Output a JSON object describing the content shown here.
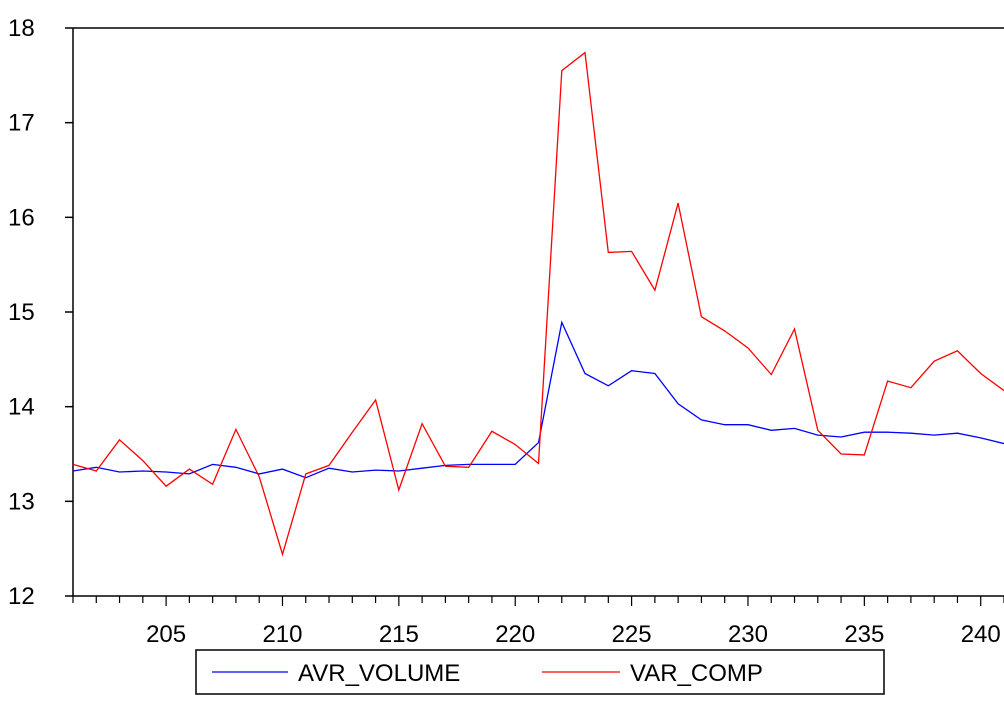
{
  "chart_data": {
    "type": "line",
    "x": [
      201,
      202,
      203,
      204,
      205,
      206,
      207,
      208,
      209,
      210,
      211,
      212,
      213,
      214,
      215,
      216,
      217,
      218,
      219,
      220,
      221,
      222,
      223,
      224,
      225,
      226,
      227,
      228,
      229,
      230,
      231,
      232,
      233,
      234,
      235,
      236,
      237,
      238,
      239,
      240,
      241
    ],
    "x_tick_labels": [
      "205",
      "210",
      "215",
      "220",
      "225",
      "230",
      "235",
      "240"
    ],
    "x_tick_values": [
      205,
      210,
      215,
      220,
      225,
      230,
      235,
      240
    ],
    "xlim": [
      201,
      241
    ],
    "y_tick_labels": [
      "12",
      "13",
      "14",
      "15",
      "16",
      "17",
      "18"
    ],
    "y_tick_values": [
      12,
      13,
      14,
      15,
      16,
      17,
      18
    ],
    "ylim": [
      12,
      18
    ],
    "grid": false,
    "legend_position": "bottom-center",
    "series": [
      {
        "name": "AVR_VOLUME",
        "color": "#0000ff",
        "values": [
          13.32,
          13.36,
          13.31,
          13.32,
          13.31,
          13.29,
          13.39,
          13.36,
          13.29,
          13.34,
          13.25,
          13.35,
          13.31,
          13.33,
          13.32,
          13.35,
          13.38,
          13.39,
          13.39,
          13.39,
          13.62,
          14.89,
          14.35,
          14.22,
          14.38,
          14.35,
          14.03,
          13.86,
          13.81,
          13.81,
          13.75,
          13.77,
          13.7,
          13.68,
          13.73,
          13.73,
          13.72,
          13.7,
          13.72,
          13.67,
          13.61
        ]
      },
      {
        "name": "VAR_COMP",
        "color": "#ff0000",
        "values": [
          13.39,
          13.32,
          13.65,
          13.43,
          13.16,
          13.34,
          13.18,
          13.76,
          13.26,
          12.44,
          13.29,
          13.38,
          13.73,
          14.07,
          13.12,
          13.82,
          13.37,
          13.36,
          13.74,
          13.6,
          13.4,
          17.55,
          17.74,
          15.63,
          15.64,
          15.23,
          16.15,
          14.95,
          14.8,
          14.62,
          14.34,
          14.82,
          13.75,
          13.5,
          13.49,
          14.27,
          14.2,
          14.48,
          14.59,
          14.35,
          14.17
        ]
      }
    ]
  }
}
